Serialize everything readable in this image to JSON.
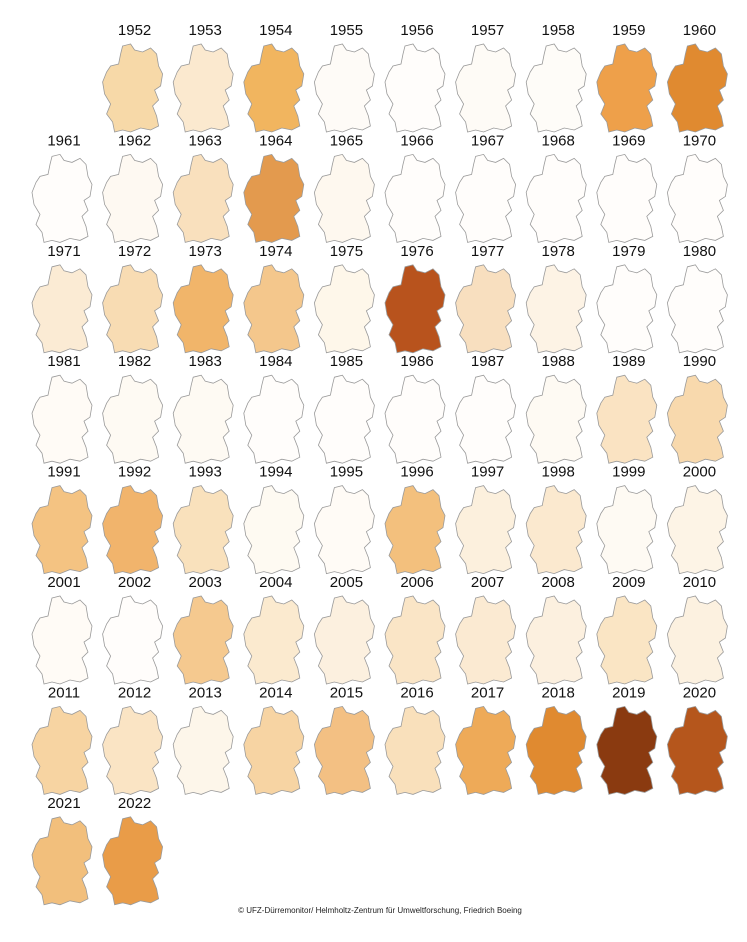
{
  "maps": [
    {
      "year": "1952",
      "color": "#f7d9a8"
    },
    {
      "year": "1953",
      "color": "#fbe9cf"
    },
    {
      "year": "1954",
      "color": "#f1b55f"
    },
    {
      "year": "1955",
      "color": "#fefbf7"
    },
    {
      "year": "1956",
      "color": "#fffdfb"
    },
    {
      "year": "1957",
      "color": "#fefbf6"
    },
    {
      "year": "1958",
      "color": "#fefcf8"
    },
    {
      "year": "1959",
      "color": "#eea04a"
    },
    {
      "year": "1960",
      "color": "#e08a30"
    },
    {
      "year": "1961",
      "color": "#fffdfb"
    },
    {
      "year": "1962",
      "color": "#fef9f2"
    },
    {
      "year": "1963",
      "color": "#f9e0bd"
    },
    {
      "year": "1964",
      "color": "#e39a4e"
    },
    {
      "year": "1965",
      "color": "#fef8ef"
    },
    {
      "year": "1966",
      "color": "#fffdfb"
    },
    {
      "year": "1967",
      "color": "#fffdfb"
    },
    {
      "year": "1968",
      "color": "#fffdfb"
    },
    {
      "year": "1969",
      "color": "#fffdfb"
    },
    {
      "year": "1970",
      "color": "#fffdfb"
    },
    {
      "year": "1971",
      "color": "#fbebd4"
    },
    {
      "year": "1972",
      "color": "#f8dcb3"
    },
    {
      "year": "1973",
      "color": "#f1b56a"
    },
    {
      "year": "1974",
      "color": "#f4c78c"
    },
    {
      "year": "1975",
      "color": "#fef7ea"
    },
    {
      "year": "1976",
      "color": "#b8531d"
    },
    {
      "year": "1977",
      "color": "#f8dfbf"
    },
    {
      "year": "1978",
      "color": "#fdf3e5"
    },
    {
      "year": "1979",
      "color": "#fffdfb"
    },
    {
      "year": "1980",
      "color": "#fffdfb"
    },
    {
      "year": "1981",
      "color": "#fffbf6"
    },
    {
      "year": "1982",
      "color": "#fefaf3"
    },
    {
      "year": "1983",
      "color": "#fefaf3"
    },
    {
      "year": "1984",
      "color": "#fffdfb"
    },
    {
      "year": "1985",
      "color": "#fffdfb"
    },
    {
      "year": "1986",
      "color": "#fffdfb"
    },
    {
      "year": "1987",
      "color": "#fffdfb"
    },
    {
      "year": "1988",
      "color": "#fefaf3"
    },
    {
      "year": "1989",
      "color": "#fae3c2"
    },
    {
      "year": "1990",
      "color": "#f8d9ad"
    },
    {
      "year": "1991",
      "color": "#f4c382"
    },
    {
      "year": "1992",
      "color": "#f1b46c"
    },
    {
      "year": "1993",
      "color": "#f9e1bc"
    },
    {
      "year": "1994",
      "color": "#fefaf2"
    },
    {
      "year": "1995",
      "color": "#fffbf6"
    },
    {
      "year": "1996",
      "color": "#f3c07d"
    },
    {
      "year": "1997",
      "color": "#fcf0dd"
    },
    {
      "year": "1998",
      "color": "#fbe9cf"
    },
    {
      "year": "1999",
      "color": "#fefaf3"
    },
    {
      "year": "2000",
      "color": "#fdf4e6"
    },
    {
      "year": "2001",
      "color": "#fffbf6"
    },
    {
      "year": "2002",
      "color": "#fffdfb"
    },
    {
      "year": "2003",
      "color": "#f5c98f"
    },
    {
      "year": "2004",
      "color": "#fbeacf"
    },
    {
      "year": "2005",
      "color": "#fcf0df"
    },
    {
      "year": "2006",
      "color": "#fae5c6"
    },
    {
      "year": "2007",
      "color": "#fbead2"
    },
    {
      "year": "2008",
      "color": "#fcf0df"
    },
    {
      "year": "2009",
      "color": "#fae5c4"
    },
    {
      "year": "2010",
      "color": "#fcf1e0"
    },
    {
      "year": "2011",
      "color": "#f7d4a2"
    },
    {
      "year": "2012",
      "color": "#fae4c4"
    },
    {
      "year": "2013",
      "color": "#fdf6ea"
    },
    {
      "year": "2014",
      "color": "#f7d4a3"
    },
    {
      "year": "2015",
      "color": "#f3c083"
    },
    {
      "year": "2016",
      "color": "#f9e0bb"
    },
    {
      "year": "2017",
      "color": "#eeaa58"
    },
    {
      "year": "2018",
      "color": "#e08a30"
    },
    {
      "year": "2019",
      "color": "#8a3a10"
    },
    {
      "year": "2020",
      "color": "#b5561c"
    },
    {
      "year": "2021",
      "color": "#f2bf7c"
    },
    {
      "year": "2022",
      "color": "#e99c48"
    }
  ],
  "credit": "© UFZ-Dürremonitor/ Helmholtz-Zentrum für Umweltforschung, Friedrich Boeing"
}
